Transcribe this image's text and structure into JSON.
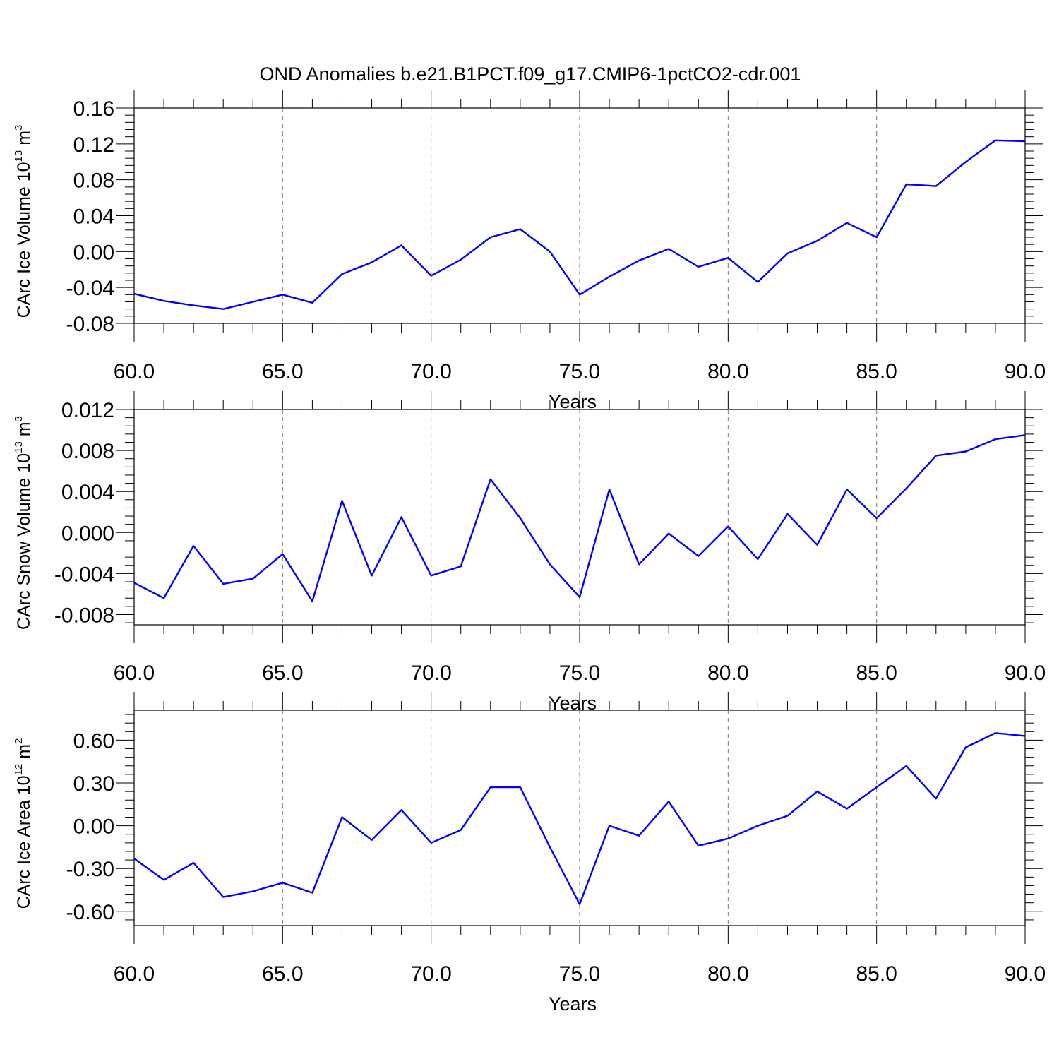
{
  "title": "OND Anomalies b.e21.B1PCT.f09_g17.CMIP6-1pctCO2-cdr.001",
  "colors": {
    "series": "#0000ff",
    "grid": "#777777",
    "axes": "#000000"
  },
  "chart_data": [
    {
      "type": "line",
      "title": "",
      "xlabel": "Years",
      "ylabel": {
        "text": "CArc Ice Volume 10",
        "exp": "13",
        "unit": " m",
        "unit_exp": "3"
      },
      "xlim": [
        60,
        90
      ],
      "ylim": [
        -0.08,
        0.16
      ],
      "x_ticks": [
        "60.0",
        "65.0",
        "70.0",
        "75.0",
        "80.0",
        "85.0",
        "90.0"
      ],
      "y_ticks": [
        "0.16",
        "0.12",
        "0.08",
        "0.04",
        "0.00",
        "-0.04",
        "-0.08"
      ],
      "grid": "x dashed",
      "x": [
        60,
        61,
        62,
        63,
        64,
        65,
        66,
        67,
        68,
        69,
        70,
        71,
        72,
        73,
        74,
        75,
        76,
        77,
        78,
        79,
        80,
        81,
        82,
        83,
        84,
        85,
        86,
        87,
        88,
        89,
        90
      ],
      "series": [
        {
          "values": [
            -0.047,
            -0.055,
            -0.06,
            -0.064,
            -0.056,
            -0.048,
            -0.057,
            -0.025,
            -0.012,
            0.007,
            -0.027,
            -0.009,
            0.016,
            0.025,
            0.0,
            -0.048,
            -0.028,
            -0.01,
            0.003,
            -0.017,
            -0.007,
            -0.034,
            -0.002,
            0.012,
            0.032,
            0.016,
            0.075,
            0.073,
            0.1,
            0.124,
            0.123
          ]
        }
      ]
    },
    {
      "type": "line",
      "title": "",
      "xlabel": "Years",
      "ylabel": {
        "text": "CArc Snow Volume 10",
        "exp": "13",
        "unit": " m",
        "unit_exp": "3"
      },
      "xlim": [
        60,
        90
      ],
      "ylim": [
        -0.009,
        0.012
      ],
      "x_ticks": [
        "60.0",
        "65.0",
        "70.0",
        "75.0",
        "80.0",
        "85.0",
        "90.0"
      ],
      "y_ticks": [
        "0.012",
        "0.008",
        "0.004",
        "0.000",
        "-0.004",
        "-0.008"
      ],
      "grid": "x dashed",
      "x": [
        60,
        61,
        62,
        63,
        64,
        65,
        66,
        67,
        68,
        69,
        70,
        71,
        72,
        73,
        74,
        75,
        76,
        77,
        78,
        79,
        80,
        81,
        82,
        83,
        84,
        85,
        86,
        87,
        88,
        89,
        90
      ],
      "series": [
        {
          "values": [
            -0.0049,
            -0.0064,
            -0.0013,
            -0.005,
            -0.0045,
            -0.0021,
            -0.0067,
            0.0031,
            -0.0042,
            0.0015,
            -0.0042,
            -0.0033,
            0.0052,
            0.0014,
            -0.0031,
            -0.0063,
            0.0042,
            -0.0031,
            -0.0001,
            -0.0023,
            0.0006,
            -0.0026,
            0.0018,
            -0.0012,
            0.0042,
            0.0014,
            0.0043,
            0.0075,
            0.0079,
            0.0091,
            0.0095
          ]
        }
      ]
    },
    {
      "type": "line",
      "title": "",
      "xlabel": "Years",
      "ylabel": {
        "text": "CArc Ice Area 10",
        "exp": "12",
        "unit": " m",
        "unit_exp": "2"
      },
      "xlim": [
        60,
        90
      ],
      "ylim": [
        -0.7,
        0.81
      ],
      "x_ticks": [
        "60.0",
        "65.0",
        "70.0",
        "75.0",
        "80.0",
        "85.0",
        "90.0"
      ],
      "y_ticks": [
        "0.60",
        "0.30",
        "0.00",
        "-0.30",
        "-0.60"
      ],
      "grid": "x dashed",
      "x": [
        60,
        61,
        62,
        63,
        64,
        65,
        66,
        67,
        68,
        69,
        70,
        71,
        72,
        73,
        74,
        75,
        76,
        77,
        78,
        79,
        80,
        81,
        82,
        83,
        84,
        85,
        86,
        87,
        88,
        89,
        90
      ],
      "series": [
        {
          "values": [
            -0.23,
            -0.38,
            -0.26,
            -0.5,
            -0.46,
            -0.4,
            -0.47,
            0.06,
            -0.1,
            0.11,
            -0.12,
            -0.03,
            0.27,
            0.27,
            -0.15,
            -0.55,
            0.0,
            -0.07,
            0.17,
            -0.14,
            -0.09,
            0.0,
            0.07,
            0.24,
            0.12,
            0.27,
            0.42,
            0.19,
            0.55,
            0.65,
            0.63
          ]
        }
      ]
    }
  ]
}
